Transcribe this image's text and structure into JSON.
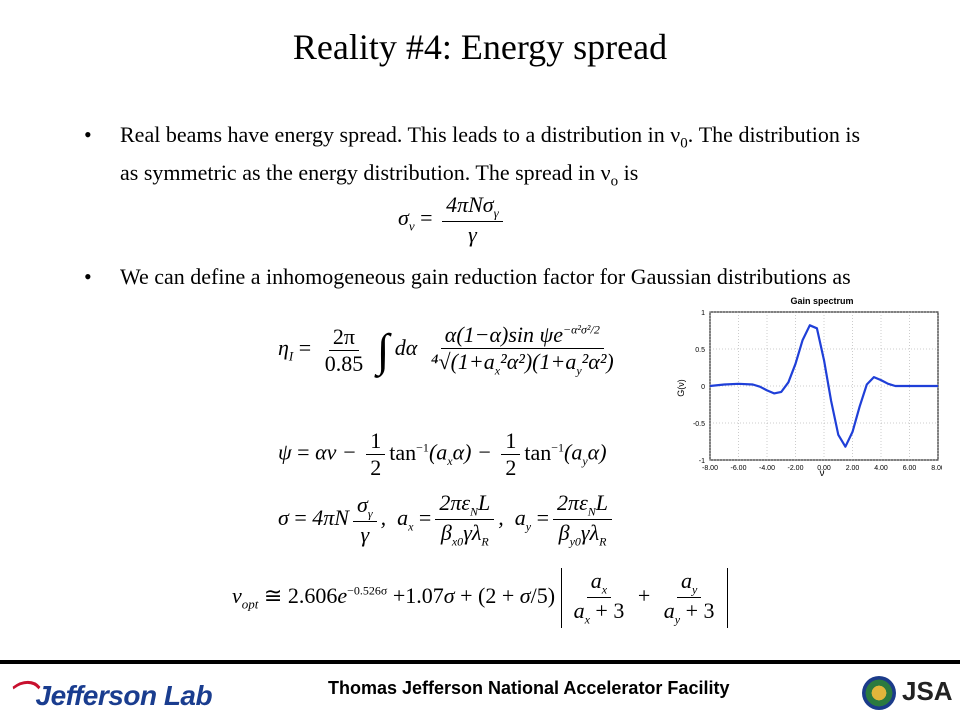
{
  "slide": {
    "title": "Reality #4: Energy spread",
    "bullets": [
      {
        "symbol": "•",
        "text_a": "Real beams have energy spread.  This leads to a distribution in ",
        "nu0": "ν",
        "nu0_sub": "0",
        "text_b": ".  The distribution is as symmetric as the energy distribution.  The spread in ",
        "nuo": "ν",
        "nuo_sub": "o",
        "text_c": " is"
      },
      {
        "symbol": "•",
        "text": "We can define a inhomogeneous gain reduction factor for Gaussian distributions as"
      }
    ]
  },
  "chart_data": {
    "type": "line",
    "title": "Gain spectrum",
    "xlabel": "ν",
    "ylabel": "G(ν)",
    "xlim": [
      -8,
      8
    ],
    "ylim": [
      -1,
      1
    ],
    "x_ticks": [
      "-8.00",
      "-6.00",
      "-4.00",
      "-2.00",
      "0.00",
      "2.00",
      "4.00",
      "6.00",
      "8.00"
    ],
    "y_ticks": [
      "1",
      "0.5",
      "0",
      "-0.5",
      "-1"
    ],
    "grid": true,
    "series": [
      {
        "color": "#1f3fd8",
        "x": [
          -8,
          -7,
          -6,
          -5,
          -4.5,
          -4,
          -3.5,
          -3,
          -2.5,
          -2,
          -1.5,
          -1,
          -0.5,
          0,
          0.5,
          1,
          1.5,
          2,
          2.5,
          3,
          3.5,
          4,
          4.5,
          5,
          6,
          7,
          8
        ],
        "y": [
          0.0,
          0.02,
          0.03,
          0.02,
          -0.01,
          -0.06,
          -0.1,
          -0.08,
          0.05,
          0.3,
          0.62,
          0.82,
          0.78,
          0.35,
          -0.2,
          -0.66,
          -0.82,
          -0.62,
          -0.28,
          0.02,
          0.12,
          0.08,
          0.03,
          0.0,
          0.0,
          0.0,
          0.0
        ]
      }
    ]
  },
  "footer": {
    "logo": "Jefferson Lab",
    "facility": "Thomas Jefferson National Accelerator Facility",
    "partner": "JSA",
    "accent_color": "#1a3d8f",
    "seal_icon": "doe-seal-icon"
  }
}
